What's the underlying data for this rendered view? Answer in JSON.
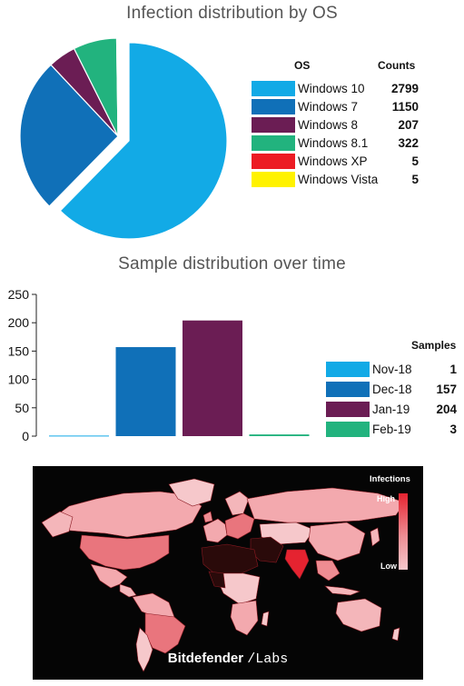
{
  "chart_data": [
    {
      "type": "pie",
      "title": "Infection distribution by OS",
      "legend_headers": {
        "label": "OS",
        "value": "Counts"
      },
      "legend_placement": "right",
      "slices": [
        {
          "label": "Windows 10",
          "value": 2799,
          "color": "#12aae6"
        },
        {
          "label": "Windows 7",
          "value": 1150,
          "color": "#1070b8"
        },
        {
          "label": "Windows 8",
          "value": 207,
          "color": "#6b1d54"
        },
        {
          "label": "Windows 8.1",
          "value": 322,
          "color": "#22b37e"
        },
        {
          "label": "Windows XP",
          "value": 5,
          "color": "#ec1c24"
        },
        {
          "label": "Windows Vista",
          "value": 5,
          "color": "#fff200"
        }
      ],
      "exploded": "Windows 10"
    },
    {
      "type": "bar",
      "title": "Sample distribution over time",
      "legend_headers": {
        "value": "Samples"
      },
      "legend_placement": "right",
      "categories": [
        "Nov-18",
        "Dec-18",
        "Jan-19",
        "Feb-19"
      ],
      "values": [
        1,
        157,
        204,
        3
      ],
      "colors": [
        "#12aae6",
        "#1070b8",
        "#6b1d54",
        "#22b37e"
      ],
      "ylim": [
        0,
        250
      ],
      "yticks": [
        0,
        50,
        100,
        150,
        200,
        250
      ],
      "grid": false,
      "xlabel": "",
      "ylabel": ""
    },
    {
      "type": "heatmap",
      "kind": "choropleth world map",
      "legend_title": "Infections",
      "legend_high": "High",
      "legend_low": "Low",
      "brand_primary": "Bitdefender",
      "brand_secondary": "/Labs",
      "colors": {
        "background": "#050505",
        "high": "#e52330",
        "low": "#f6c8cb",
        "none": "#2a0a0a"
      }
    }
  ]
}
